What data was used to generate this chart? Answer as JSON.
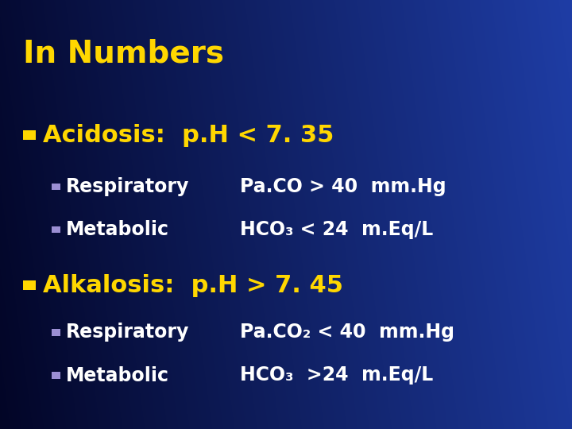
{
  "title": "In Numbers",
  "title_color": "#FFD700",
  "title_fontsize": 28,
  "bg_color": "#1A3FA0",
  "bg_color_dark": "#050D3A",
  "bg_color_mid": "#1A50C8",
  "bullet_color_main": "#FFD700",
  "bullet_color_sub": "#9B8FD4",
  "text_color_white": "#FFFFFF",
  "text_color_yellow": "#FFD700",
  "sections": [
    {
      "heading": "Acidosis:  p.H < 7. 35",
      "heading_color": "#FFD700",
      "heading_fontsize": 22,
      "items": [
        {
          "label": "Respiratory",
          "value": "Pa.CO > 40  mm.Hg"
        },
        {
          "label": "Metabolic",
          "value": "HCO₃ < 24  m.Eq/L"
        }
      ]
    },
    {
      "heading": "Alkalosis:  p.H > 7. 45",
      "heading_color": "#FFD700",
      "heading_fontsize": 22,
      "items": [
        {
          "label": "Respiratory",
          "value": "Pa.CO₂ < 40  mm.Hg"
        },
        {
          "label": "Metabolic",
          "value": "HCO₃  >24  m.Eq/L"
        }
      ]
    }
  ]
}
